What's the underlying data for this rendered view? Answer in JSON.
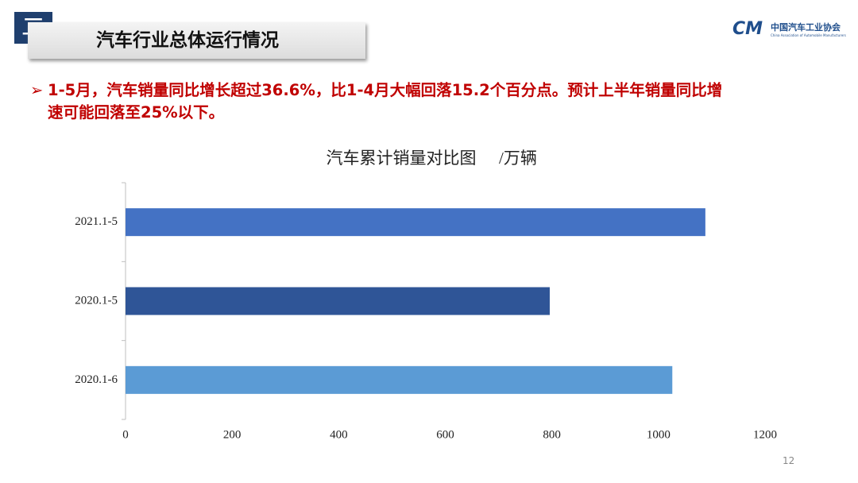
{
  "header": {
    "section": "二",
    "title": "汽车行业总体运行情况",
    "logo_mark": "CM",
    "logo_name": "中国汽车工业协会",
    "logo_english": "China Association of Automobile Manufacturers"
  },
  "bullet": [
    "1-5月，汽车销量同比增长超过36.6%，比1-4月大幅回落15.2个百分点。预计上半年销量同比增",
    "速可能回落至25%以下。"
  ],
  "page_number": "12",
  "chart_data": {
    "type": "hbar",
    "title": "汽车累计销量对比图",
    "unit": "/万辆",
    "categories": [
      "2021.1-5",
      "2020.1-5",
      "2020.1-6"
    ],
    "values": [
      1088,
      796,
      1026
    ],
    "colors": [
      "#4472c4",
      "#2f5597",
      "#5b9bd5"
    ],
    "xlim": [
      0,
      1200
    ],
    "xticks": [
      0,
      200,
      400,
      600,
      800,
      1000,
      1200
    ],
    "grid": false
  }
}
